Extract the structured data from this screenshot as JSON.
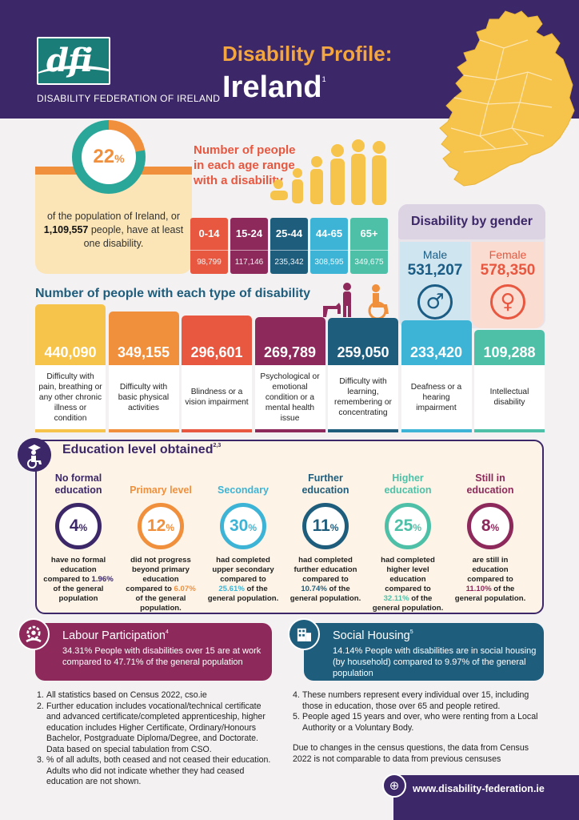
{
  "header": {
    "logo_text": "dfi",
    "org_name": "DISABILITY FEDERATION OF IRELAND",
    "title_line1": "Disability Profile:",
    "title_line2": "Ireland",
    "title_note": "1"
  },
  "population": {
    "percent": "22",
    "percent_sign": "%",
    "percent_value": 22,
    "text_before": "of the population of Ireland, or ",
    "count": "1,109,557",
    "text_after": " people, have at least one disability."
  },
  "age_range": {
    "title": "Number of people in each age range with a disability",
    "groups": [
      {
        "label": "0-14",
        "value": "98,799",
        "color": "#e8573f"
      },
      {
        "label": "15-24",
        "value": "117,146",
        "color": "#8d2a5b"
      },
      {
        "label": "25-44",
        "value": "235,342",
        "color": "#1f5d7d"
      },
      {
        "label": "44-65",
        "value": "308,595",
        "color": "#3db4d6"
      },
      {
        "label": "65+",
        "value": "349,675",
        "color": "#4fc0a8"
      }
    ]
  },
  "gender": {
    "title": "Disability by gender",
    "male_label": "Male",
    "male_value": "531,207",
    "male_symbol": "♂",
    "female_label": "Female",
    "female_value": "578,350",
    "female_symbol": "♀"
  },
  "disability_types": {
    "title": "Number of people with each type of disability",
    "items": [
      {
        "value": "440,090",
        "count": 440090,
        "label": "Difficulty with pain, breathing or any other chronic illness or condition",
        "color": "#f6c44a"
      },
      {
        "value": "349,155",
        "count": 349155,
        "label": "Difficulty with basic physical activities",
        "color": "#f08f3c"
      },
      {
        "value": "296,601",
        "count": 296601,
        "label": "Blindness or a vision impairment",
        "color": "#e8573f"
      },
      {
        "value": "269,789",
        "count": 269789,
        "label": "Psychological or emotional condition or a mental health issue",
        "color": "#8d2a5b"
      },
      {
        "value": "259,050",
        "count": 259050,
        "label": "Difficulty with learning, remembering or concentrating",
        "color": "#1f5d7d"
      },
      {
        "value": "233,420",
        "count": 233420,
        "label": "Deafness or a hearing impairment",
        "color": "#3db4d6"
      },
      {
        "value": "109,288",
        "count": 109288,
        "label": "Intellectual disability",
        "color": "#4fc0a8"
      }
    ]
  },
  "education": {
    "title": "Education level obtained",
    "title_note": "2,3",
    "levels": [
      {
        "head": "No formal education",
        "percent": "4",
        "percent_value": 4,
        "text_before": "have no formal education compared to ",
        "compare": "1.96%",
        "text_after": " of the general population",
        "color": "#3c2768"
      },
      {
        "head": "Primary level",
        "percent": "12",
        "percent_value": 12,
        "text_before": "did not progress beyond primary education compared to ",
        "compare": "6.07%",
        "text_after": " of the general population.",
        "color": "#f08f3c"
      },
      {
        "head": "Secondary",
        "percent": "30",
        "percent_value": 30,
        "text_before": "had completed upper secondary compared to ",
        "compare": "25.61%",
        "text_after": " of the general population.",
        "color": "#3db4d6"
      },
      {
        "head": "Further education",
        "percent": "11",
        "percent_value": 11,
        "text_before": "had completed further education compared to ",
        "compare": "10.74%",
        "text_after": " of the general population.",
        "color": "#1f5d7d"
      },
      {
        "head": "Higher education",
        "percent": "25",
        "percent_value": 25,
        "text_before": "had completed higher level education compared to ",
        "compare": "32.11%",
        "text_after": " of the general population.",
        "color": "#4fc0a8"
      },
      {
        "head": "Still in education",
        "percent": "8",
        "percent_value": 8,
        "text_before": "are still in education compared to ",
        "compare": "11.10%",
        "text_after": " of the general population.",
        "color": "#8d2a5b"
      }
    ],
    "percent_sign": "%"
  },
  "labour": {
    "title": "Labour Participation",
    "title_note": "4",
    "text": "34.31%  People with disabilities over 15 are at work compared to 47.71% of the general population"
  },
  "housing": {
    "title": "Social Housing",
    "title_note": "5",
    "text": "14.14% People with disabilities are in social housing (by household) compared to 9.97% of the general population"
  },
  "footnotes": {
    "left": [
      {
        "n": "1.",
        "text": "All statistics based on Census 2022, cso.ie"
      },
      {
        "n": "2.",
        "text": "Further education includes vocational/technical certificate and advanced certificate/completed apprenticeship, higher education includes Higher Certificate, Ordinary/Honours Bachelor, Postgraduate Diploma/Degree, and Doctorate. Data based on special tabulation from CSO."
      },
      {
        "n": "3.",
        "text": "% of all adults, both ceased and not ceased their education. Adults who did not indicate whether they had ceased education are not shown."
      }
    ],
    "right": [
      {
        "n": "4.",
        "text": "These numbers represent every individual over 15, including those in education, those over 65 and people retired."
      },
      {
        "n": "5.",
        "text": "People aged 15 years and over, who were renting from a Local Authority or a Voluntary Body."
      }
    ],
    "note": "Due to changes in the census questions, the data from Census 2022 is not comparable to data from previous censuses"
  },
  "footer": {
    "website": "www.disability-federation.ie",
    "web_icon": "globe-icon"
  },
  "colors": {
    "header_bg": "#3c2768",
    "accent_orange": "#f08f3c",
    "map_yellow": "#f6c44a"
  }
}
